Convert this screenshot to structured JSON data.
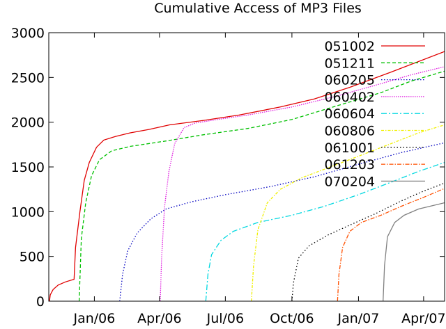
{
  "chart_data": {
    "type": "line",
    "title": "Cumulative Access of MP3 Files",
    "xlabel": "",
    "ylabel": "",
    "xlim": [
      "2005-10-30",
      "2007-04-30"
    ],
    "ylim": [
      0,
      3000
    ],
    "x_ticks": [
      {
        "date": "2006-01-01",
        "label": "Jan/06"
      },
      {
        "date": "2006-04-01",
        "label": "Apr/06"
      },
      {
        "date": "2006-07-01",
        "label": "Jul/06"
      },
      {
        "date": "2006-10-01",
        "label": "Oct/06"
      },
      {
        "date": "2007-01-01",
        "label": "Jan/07"
      },
      {
        "date": "2007-04-01",
        "label": "Apr/07"
      }
    ],
    "y_ticks": [
      {
        "value": 0,
        "label": "0"
      },
      {
        "value": 500,
        "label": "500"
      },
      {
        "value": 1000,
        "label": "1000"
      },
      {
        "value": 1500,
        "label": "1500"
      },
      {
        "value": 2000,
        "label": "2000"
      },
      {
        "value": 2500,
        "label": "2500"
      },
      {
        "value": 3000,
        "label": "3000"
      }
    ],
    "grid": false,
    "legend_position": "top-right",
    "series": [
      {
        "name": "051002",
        "color": "#e00000",
        "dash": "solid",
        "points": [
          [
            "2005-10-31",
            0
          ],
          [
            "2005-11-01",
            70
          ],
          [
            "2005-11-05",
            130
          ],
          [
            "2005-11-12",
            180
          ],
          [
            "2005-11-22",
            215
          ],
          [
            "2005-12-04",
            245
          ],
          [
            "2005-12-06",
            600
          ],
          [
            "2005-12-12",
            1000
          ],
          [
            "2005-12-18",
            1350
          ],
          [
            "2005-12-25",
            1550
          ],
          [
            "2006-01-04",
            1720
          ],
          [
            "2006-01-14",
            1800
          ],
          [
            "2006-01-30",
            1840
          ],
          [
            "2006-02-19",
            1880
          ],
          [
            "2006-03-18",
            1920
          ],
          [
            "2006-04-15",
            1970
          ],
          [
            "2006-06-01",
            2020
          ],
          [
            "2006-07-20",
            2080
          ],
          [
            "2006-09-15",
            2170
          ],
          [
            "2006-11-01",
            2260
          ],
          [
            "2006-12-20",
            2390
          ],
          [
            "2007-02-15",
            2560
          ],
          [
            "2007-04-30",
            2790
          ]
        ]
      },
      {
        "name": "051211",
        "color": "#00c000",
        "dash": "5,3",
        "points": [
          [
            "2005-12-11",
            0
          ],
          [
            "2005-12-14",
            700
          ],
          [
            "2005-12-20",
            1100
          ],
          [
            "2005-12-28",
            1400
          ],
          [
            "2006-01-08",
            1580
          ],
          [
            "2006-01-25",
            1680
          ],
          [
            "2006-02-20",
            1730
          ],
          [
            "2006-04-10",
            1790
          ],
          [
            "2006-06-01",
            1860
          ],
          [
            "2006-08-01",
            1930
          ],
          [
            "2006-10-01",
            2030
          ],
          [
            "2006-12-01",
            2180
          ],
          [
            "2007-02-01",
            2330
          ],
          [
            "2007-03-15",
            2460
          ],
          [
            "2007-04-30",
            2570
          ]
        ]
      },
      {
        "name": "060205",
        "color": "#0000c0",
        "dash": "1.5,2.5",
        "points": [
          [
            "2006-02-05",
            0
          ],
          [
            "2006-02-09",
            300
          ],
          [
            "2006-02-16",
            560
          ],
          [
            "2006-03-01",
            760
          ],
          [
            "2006-03-20",
            920
          ],
          [
            "2006-04-10",
            1030
          ],
          [
            "2006-05-15",
            1110
          ],
          [
            "2006-07-01",
            1190
          ],
          [
            "2006-09-01",
            1280
          ],
          [
            "2006-11-01",
            1390
          ],
          [
            "2007-01-01",
            1530
          ],
          [
            "2007-03-01",
            1660
          ],
          [
            "2007-04-30",
            1770
          ]
        ]
      },
      {
        "name": "060402",
        "color": "#e020e0",
        "dash": "1.5,1.5",
        "points": [
          [
            "2006-04-02",
            0
          ],
          [
            "2006-04-04",
            500
          ],
          [
            "2006-04-08",
            1050
          ],
          [
            "2006-04-14",
            1450
          ],
          [
            "2006-04-22",
            1760
          ],
          [
            "2006-05-05",
            1940
          ],
          [
            "2006-05-20",
            1990
          ],
          [
            "2006-06-20",
            2030
          ],
          [
            "2006-08-01",
            2080
          ],
          [
            "2006-10-01",
            2170
          ],
          [
            "2006-12-01",
            2290
          ],
          [
            "2007-02-01",
            2430
          ],
          [
            "2007-03-15",
            2530
          ],
          [
            "2007-04-30",
            2620
          ]
        ]
      },
      {
        "name": "060604",
        "color": "#00d8e0",
        "dash": "8,3,2,3",
        "points": [
          [
            "2006-06-04",
            0
          ],
          [
            "2006-06-07",
            300
          ],
          [
            "2006-06-12",
            520
          ],
          [
            "2006-06-25",
            680
          ],
          [
            "2006-07-12",
            780
          ],
          [
            "2006-08-15",
            880
          ],
          [
            "2006-10-01",
            960
          ],
          [
            "2006-11-15",
            1060
          ],
          [
            "2007-01-01",
            1190
          ],
          [
            "2007-02-15",
            1330
          ],
          [
            "2007-03-25",
            1450
          ],
          [
            "2007-04-30",
            1550
          ]
        ]
      },
      {
        "name": "060806",
        "color": "#f0f000",
        "dash": "4,2,1.5,2",
        "points": [
          [
            "2006-08-06",
            0
          ],
          [
            "2006-08-09",
            400
          ],
          [
            "2006-08-15",
            800
          ],
          [
            "2006-08-28",
            1100
          ],
          [
            "2006-09-15",
            1250
          ],
          [
            "2006-10-15",
            1380
          ],
          [
            "2006-11-20",
            1490
          ],
          [
            "2007-01-01",
            1620
          ],
          [
            "2007-02-15",
            1760
          ],
          [
            "2007-03-25",
            1880
          ],
          [
            "2007-04-30",
            1970
          ]
        ]
      },
      {
        "name": "061001",
        "color": "#000000",
        "dash": "1.5,3",
        "points": [
          [
            "2006-10-01",
            0
          ],
          [
            "2006-10-03",
            200
          ],
          [
            "2006-10-10",
            480
          ],
          [
            "2006-10-25",
            620
          ],
          [
            "2006-11-20",
            740
          ],
          [
            "2006-12-20",
            850
          ],
          [
            "2007-01-25",
            980
          ],
          [
            "2007-03-01",
            1120
          ],
          [
            "2007-04-01",
            1230
          ],
          [
            "2007-04-30",
            1320
          ]
        ]
      },
      {
        "name": "061203",
        "color": "#ff5000",
        "dash": "6,2,1.5,2",
        "points": [
          [
            "2006-12-03",
            0
          ],
          [
            "2006-12-05",
            300
          ],
          [
            "2006-12-10",
            600
          ],
          [
            "2006-12-20",
            780
          ],
          [
            "2007-01-05",
            880
          ],
          [
            "2007-02-01",
            960
          ],
          [
            "2007-03-01",
            1060
          ],
          [
            "2007-04-01",
            1160
          ],
          [
            "2007-04-30",
            1260
          ]
        ]
      },
      {
        "name": "070204",
        "color": "#808080",
        "dash": "solid",
        "points": [
          [
            "2007-02-04",
            0
          ],
          [
            "2007-02-06",
            400
          ],
          [
            "2007-02-10",
            720
          ],
          [
            "2007-02-20",
            880
          ],
          [
            "2007-03-05",
            960
          ],
          [
            "2007-03-25",
            1030
          ],
          [
            "2007-04-15",
            1070
          ],
          [
            "2007-04-30",
            1100
          ]
        ]
      }
    ]
  }
}
